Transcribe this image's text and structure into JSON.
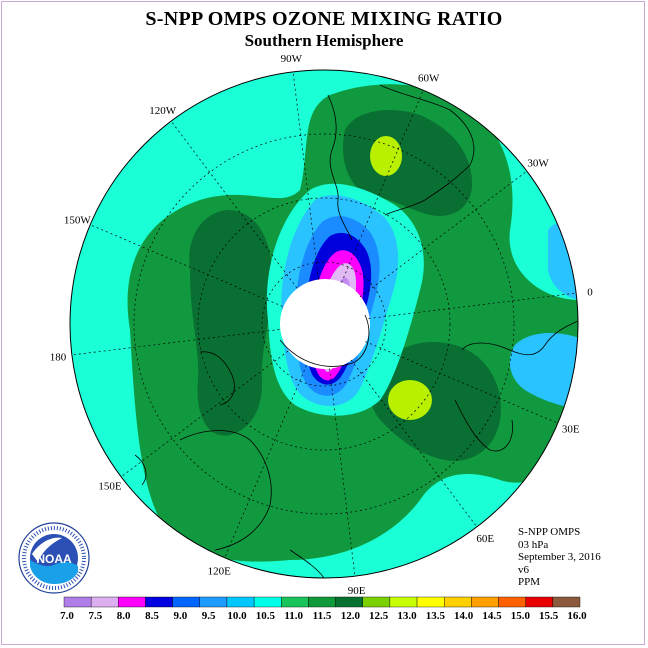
{
  "title": "S-NPP OMPS OZONE MIXING RATIO",
  "subtitle": "Southern Hemisphere",
  "longitude_labels": [
    {
      "text": "90W",
      "lon": -90
    },
    {
      "text": "60W",
      "lon": -60
    },
    {
      "text": "30W",
      "lon": -30
    },
    {
      "text": "0",
      "lon": 0
    },
    {
      "text": "30E",
      "lon": 30
    },
    {
      "text": "60E",
      "lon": 60
    },
    {
      "text": "90E",
      "lon": 90
    },
    {
      "text": "120E",
      "lon": 120
    },
    {
      "text": "150E",
      "lon": 150
    },
    {
      "text": "180",
      "lon": 180
    },
    {
      "text": "150W",
      "lon": -150
    },
    {
      "text": "120W",
      "lon": -120
    }
  ],
  "info": {
    "instrument": "S-NPP OMPS",
    "level": "03 hPa",
    "date": "September 3, 2016",
    "version": "v6",
    "units": "PPM"
  },
  "logo": {
    "text": "NOAA"
  },
  "colorbar": {
    "labels": [
      "7.0",
      "7.5",
      "8.0",
      "8.5",
      "9.0",
      "9.5",
      "10.0",
      "10.5",
      "11.0",
      "11.5",
      "12.0",
      "12.5",
      "13.0",
      "13.5",
      "14.0",
      "14.5",
      "15.0",
      "15.5",
      "16.0"
    ],
    "colors": [
      "#b07ee8",
      "#dcb0f0",
      "#ff00ff",
      "#0000e0",
      "#0066ff",
      "#1e9bff",
      "#00c8ff",
      "#00ffe8",
      "#19c45a",
      "#0f9a3a",
      "#057030",
      "#7ad000",
      "#c8ff00",
      "#ffff00",
      "#ffd000",
      "#ffa000",
      "#ff6000",
      "#e80000",
      "#8b5a3c"
    ]
  },
  "map_colors": {
    "background": "#1affd6",
    "green_mid": "#119940",
    "green_dark": "#0a6f32",
    "yellowgreen": "#b8f000",
    "blue_light": "#29c3ff",
    "blue_mid": "#1a8cff",
    "blue_dark": "#0000dd",
    "magenta": "#ff00ff",
    "violet": "#c08af0",
    "lilac": "#e0b8f4"
  }
}
